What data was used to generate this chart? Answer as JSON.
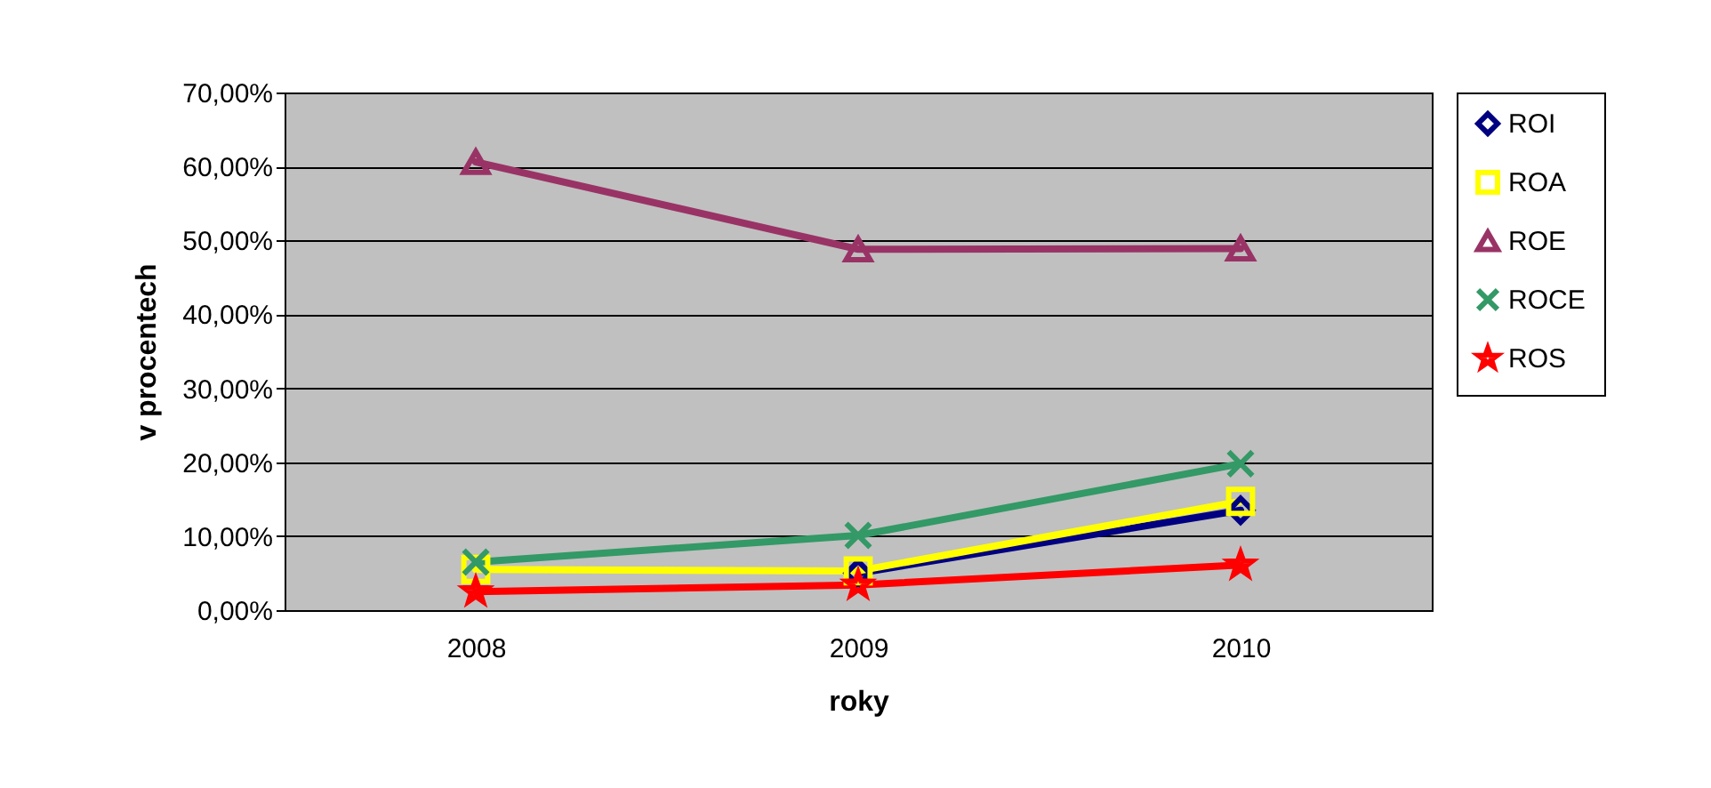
{
  "chart_data": {
    "type": "line",
    "xlabel": "roky",
    "ylabel": "v procentech",
    "categories": [
      "2008",
      "2009",
      "2010"
    ],
    "series": [
      {
        "name": "ROI",
        "color": "#000080",
        "marker": "diamond",
        "values": [
          null,
          5.0,
          13.5
        ]
      },
      {
        "name": "ROA",
        "color": "#ffff00",
        "marker": "square",
        "values": [
          5.5,
          5.3,
          14.7
        ]
      },
      {
        "name": "ROE",
        "color": "#993366",
        "marker": "triangle",
        "values": [
          60.6,
          48.8,
          48.9
        ]
      },
      {
        "name": "ROCE",
        "color": "#339966",
        "marker": "cross",
        "values": [
          6.5,
          10.1,
          19.8
        ]
      },
      {
        "name": "ROS",
        "color": "#ff0000",
        "marker": "star",
        "values": [
          2.5,
          3.4,
          6.1
        ]
      }
    ],
    "ylim": [
      0,
      70
    ],
    "yticks": [
      {
        "value": 0,
        "label": "0,00%"
      },
      {
        "value": 10,
        "label": "10,00%"
      },
      {
        "value": 20,
        "label": "20,00%"
      },
      {
        "value": 30,
        "label": "30,00%"
      },
      {
        "value": 40,
        "label": "40,00%"
      },
      {
        "value": 50,
        "label": "50,00%"
      },
      {
        "value": 60,
        "label": "60,00%"
      },
      {
        "value": 70,
        "label": "70,00%"
      }
    ],
    "grid": "y",
    "legend": "right"
  }
}
